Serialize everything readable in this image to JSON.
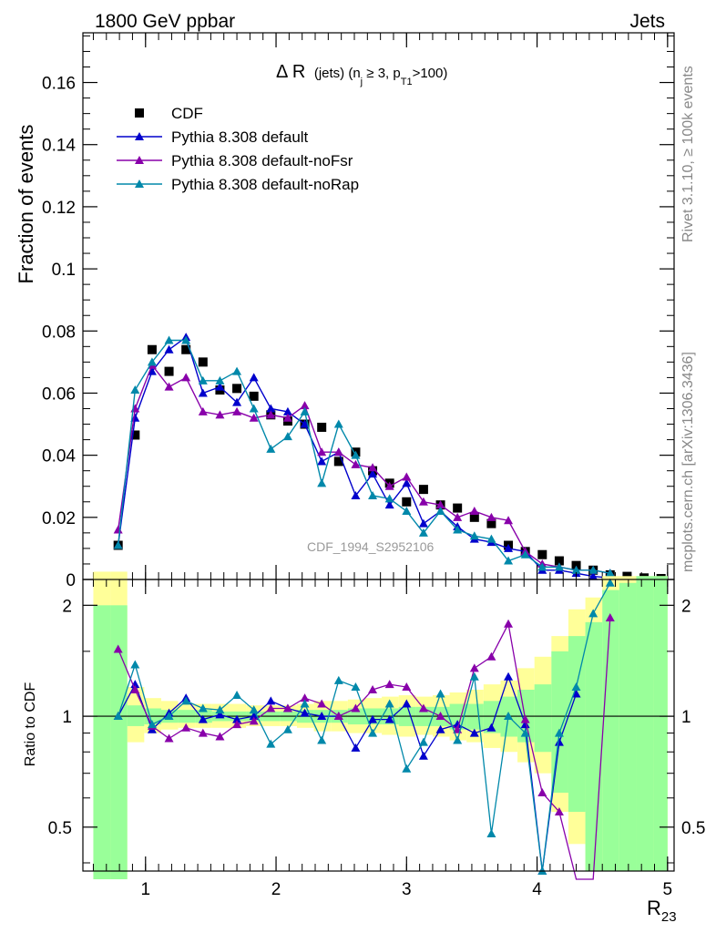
{
  "header": {
    "left": "1800 GeV ppbar",
    "right": "Jets"
  },
  "side": {
    "rivet": "Rivet 3.1.10, ≥ 100k events",
    "mcplots": "mcplots.cern.ch [arXiv:1306.3436]"
  },
  "watermark": "CDF_1994_S2952106",
  "chart_data": [
    {
      "id": "main",
      "type": "scatter",
      "title_main": "Δ R",
      "title_sub": "(jets) (n",
      "title_sub_j": "j",
      "title_sub_mid": " ≥ 3, p",
      "title_sub_t1": "T1",
      "title_sub_end": ">100)",
      "xlabel": "R",
      "xlabel_sub": "23",
      "ylabel": "Fraction of events",
      "xlim": [
        0.52,
        5.05
      ],
      "ylim": [
        0,
        0.176
      ],
      "yticks": [
        0,
        0.02,
        0.04,
        0.06,
        0.08,
        0.1,
        0.12,
        0.14,
        0.16
      ],
      "ytick_labels": [
        "0",
        "0.02",
        "0.04",
        "0.06",
        "0.08",
        "0.1",
        "0.12",
        "0.14",
        "0.16"
      ],
      "x": [
        0.7,
        0.8,
        0.9,
        1.0,
        1.1,
        1.2,
        1.3,
        1.4,
        1.5,
        1.6,
        1.7,
        1.8,
        1.9,
        2.0,
        2.1,
        2.2,
        2.3,
        2.4,
        2.5,
        2.6,
        2.7,
        2.8,
        2.9,
        3.0,
        3.1,
        3.2,
        3.3,
        3.4,
        3.5,
        3.6,
        3.7,
        3.8,
        3.9,
        4.0,
        4.1,
        4.2,
        4.3,
        4.4,
        4.5,
        4.6,
        4.7,
        4.8,
        4.9,
        5.0
      ],
      "series": [
        {
          "name": "CDF",
          "color": "#000000",
          "marker": "square",
          "x": [
            0.65,
            0.79,
            0.92,
            1.05,
            1.18,
            1.31,
            1.44,
            1.57,
            1.7,
            1.83,
            1.96,
            2.09,
            2.22,
            2.35,
            2.48,
            2.61,
            2.74,
            2.87,
            3.0,
            3.13,
            3.26,
            3.39,
            3.52,
            3.65,
            3.78,
            3.91,
            4.04,
            4.17,
            4.3,
            4.43,
            4.56,
            4.69,
            4.82,
            4.95
          ],
          "values": [
            0.0,
            0.011,
            0.0465,
            0.074,
            0.067,
            0.074,
            0.07,
            0.061,
            0.0615,
            0.059,
            0.053,
            0.051,
            0.05,
            0.049,
            0.038,
            0.041,
            0.035,
            0.031,
            0.025,
            0.029,
            0.024,
            0.023,
            0.02,
            0.018,
            0.011,
            0.009,
            0.008,
            0.006,
            0.0045,
            0.003,
            0.0015,
            0.001,
            0.0005,
            0.0003
          ]
        },
        {
          "name": "Pythia 8.308 default",
          "color": "#0000cc",
          "marker": "triangle",
          "x": [
            0.79,
            0.92,
            1.05,
            1.18,
            1.31,
            1.44,
            1.57,
            1.7,
            1.83,
            1.96,
            2.09,
            2.22,
            2.35,
            2.48,
            2.61,
            2.74,
            2.87,
            3.0,
            3.13,
            3.26,
            3.39,
            3.52,
            3.65,
            3.78,
            3.91,
            4.04,
            4.17,
            4.3,
            4.43,
            4.56
          ],
          "values": [
            0.011,
            0.052,
            0.067,
            0.074,
            0.078,
            0.06,
            0.062,
            0.057,
            0.065,
            0.055,
            0.054,
            0.05,
            0.038,
            0.041,
            0.027,
            0.034,
            0.024,
            0.031,
            0.018,
            0.022,
            0.017,
            0.013,
            0.012,
            0.01,
            0.009,
            0.003,
            0.003,
            0.002,
            0.001,
            0.0005
          ]
        },
        {
          "name": "Pythia 8.308 default-noFsr",
          "color": "#8800aa",
          "marker": "triangle",
          "x": [
            0.79,
            0.92,
            1.05,
            1.18,
            1.31,
            1.44,
            1.57,
            1.7,
            1.83,
            1.96,
            2.09,
            2.22,
            2.35,
            2.48,
            2.61,
            2.74,
            2.87,
            3.0,
            3.13,
            3.26,
            3.39,
            3.52,
            3.65,
            3.78,
            3.91,
            4.04,
            4.17,
            4.3,
            4.43,
            4.56
          ],
          "values": [
            0.016,
            0.055,
            0.069,
            0.062,
            0.065,
            0.054,
            0.053,
            0.054,
            0.052,
            0.053,
            0.052,
            0.056,
            0.041,
            0.041,
            0.037,
            0.036,
            0.03,
            0.033,
            0.025,
            0.024,
            0.02,
            0.022,
            0.02,
            0.019,
            0.009,
            0.005,
            0.004,
            0.003,
            0.003,
            0.002
          ]
        },
        {
          "name": "Pythia 8.308 default-noRap",
          "color": "#0088aa",
          "marker": "triangle",
          "x": [
            0.79,
            0.92,
            1.05,
            1.18,
            1.31,
            1.44,
            1.57,
            1.7,
            1.83,
            1.96,
            2.09,
            2.22,
            2.35,
            2.48,
            2.61,
            2.74,
            2.87,
            3.0,
            3.13,
            3.26,
            3.39,
            3.52,
            3.65,
            3.78,
            3.91,
            4.04,
            4.17,
            4.3,
            4.43,
            4.56
          ],
          "values": [
            0.011,
            0.061,
            0.07,
            0.077,
            0.077,
            0.064,
            0.064,
            0.067,
            0.055,
            0.042,
            0.046,
            0.054,
            0.031,
            0.05,
            0.04,
            0.027,
            0.026,
            0.022,
            0.015,
            0.022,
            0.016,
            0.014,
            0.013,
            0.006,
            0.008,
            0.004,
            0.004,
            0.003,
            0.003,
            0.002
          ]
        }
      ]
    },
    {
      "id": "ratio",
      "type": "line",
      "ylabel": "Ratio to CDF",
      "xlim": [
        0.52,
        5.05
      ],
      "ylim": [
        0.38,
        2.35
      ],
      "ylog": true,
      "yticks": [
        0.5,
        1,
        2
      ],
      "ytick_labels": [
        "0.5",
        "1",
        "2"
      ],
      "xticks": [
        1,
        2,
        3,
        4,
        5
      ],
      "xtick_labels": [
        "1",
        "2",
        "3",
        "4",
        "5"
      ],
      "bands": {
        "edges": [
          0.6,
          0.73,
          0.86,
          0.99,
          1.12,
          1.25,
          1.38,
          1.51,
          1.64,
          1.77,
          1.9,
          2.03,
          2.16,
          2.29,
          2.42,
          2.55,
          2.68,
          2.81,
          2.94,
          3.07,
          3.2,
          3.33,
          3.46,
          3.59,
          3.72,
          3.85,
          3.98,
          4.11,
          4.24,
          4.37,
          4.5,
          4.63,
          4.76,
          4.89,
          5.0
        ],
        "yellow_lo": [
          0.3,
          0.3,
          0.85,
          0.9,
          0.92,
          0.93,
          0.93,
          0.93,
          0.93,
          0.94,
          0.94,
          0.94,
          0.93,
          0.91,
          0.91,
          0.9,
          0.9,
          0.89,
          0.88,
          0.89,
          0.88,
          0.86,
          0.85,
          0.82,
          0.8,
          0.75,
          0.7,
          0.55,
          0.45,
          0.38,
          0.38,
          0.38,
          0.38,
          0.38
        ],
        "yellow_hi": [
          3.0,
          3.0,
          1.2,
          1.12,
          1.1,
          1.08,
          1.08,
          1.08,
          1.08,
          1.07,
          1.07,
          1.07,
          1.08,
          1.1,
          1.1,
          1.11,
          1.12,
          1.13,
          1.14,
          1.13,
          1.14,
          1.16,
          1.18,
          1.22,
          1.25,
          1.35,
          1.45,
          1.65,
          1.95,
          2.1,
          2.4,
          2.4,
          2.4,
          2.4
        ],
        "green_lo": [
          0.3,
          0.3,
          0.94,
          0.95,
          0.96,
          0.96,
          0.96,
          0.97,
          0.97,
          0.97,
          0.97,
          0.97,
          0.96,
          0.96,
          0.96,
          0.95,
          0.95,
          0.95,
          0.94,
          0.94,
          0.94,
          0.92,
          0.92,
          0.9,
          0.88,
          0.85,
          0.8,
          0.62,
          0.55,
          0.38,
          0.38,
          0.38,
          0.38,
          0.38
        ],
        "green_hi": [
          2.0,
          2.0,
          1.07,
          1.05,
          1.04,
          1.04,
          1.04,
          1.03,
          1.03,
          1.03,
          1.03,
          1.03,
          1.04,
          1.04,
          1.04,
          1.05,
          1.05,
          1.05,
          1.06,
          1.06,
          1.06,
          1.08,
          1.08,
          1.1,
          1.13,
          1.18,
          1.22,
          1.5,
          1.65,
          1.8,
          2.2,
          2.3,
          2.4,
          2.4
        ]
      },
      "series": [
        {
          "name": "Pythia 8.308 default",
          "color": "#0000cc",
          "x": [
            0.79,
            0.92,
            1.05,
            1.18,
            1.31,
            1.44,
            1.57,
            1.7,
            1.83,
            1.96,
            2.09,
            2.22,
            2.35,
            2.48,
            2.61,
            2.74,
            2.87,
            3.0,
            3.13,
            3.26,
            3.39,
            3.52,
            3.65,
            3.78,
            3.91,
            4.04,
            4.17,
            4.3
          ],
          "values": [
            1.0,
            1.22,
            0.92,
            1.02,
            1.12,
            0.98,
            1.01,
            0.98,
            1.0,
            1.1,
            1.05,
            1.02,
            1.0,
            1.0,
            0.82,
            0.98,
            0.98,
            1.08,
            0.78,
            0.92,
            0.95,
            0.9,
            0.93,
            1.28,
            0.95,
            0.38,
            0.85,
            1.15
          ]
        },
        {
          "name": "Pythia 8.308 default-noFsr",
          "color": "#8800aa",
          "x": [
            0.79,
            0.92,
            1.05,
            1.18,
            1.31,
            1.44,
            1.57,
            1.7,
            1.83,
            1.96,
            2.09,
            2.22,
            2.35,
            2.48,
            2.61,
            2.74,
            2.87,
            3.0,
            3.13,
            3.26,
            3.39,
            3.52,
            3.65,
            3.78,
            3.91,
            4.04,
            4.17,
            4.3,
            4.43,
            4.56
          ],
          "values": [
            1.52,
            1.18,
            0.94,
            0.87,
            0.93,
            0.9,
            0.88,
            0.95,
            0.97,
            1.05,
            1.05,
            1.12,
            1.08,
            1.0,
            1.05,
            1.18,
            1.22,
            1.2,
            1.05,
            1.0,
            0.92,
            1.35,
            1.45,
            1.78,
            0.98,
            0.62,
            0.55,
            0.3,
            0.3,
            1.85
          ]
        },
        {
          "name": "Pythia 8.308 default-noRap",
          "color": "#0088aa",
          "x": [
            0.79,
            0.92,
            1.05,
            1.18,
            1.31,
            1.44,
            1.57,
            1.7,
            1.83,
            1.96,
            2.09,
            2.22,
            2.35,
            2.48,
            2.61,
            2.74,
            2.87,
            3.0,
            3.13,
            3.26,
            3.39,
            3.52,
            3.65,
            3.78,
            3.91,
            4.04,
            4.17,
            4.3,
            4.43,
            4.56
          ],
          "values": [
            1.0,
            1.38,
            0.95,
            1.0,
            1.1,
            1.05,
            1.04,
            1.14,
            1.04,
            0.84,
            0.92,
            1.08,
            0.86,
            1.25,
            1.2,
            0.9,
            1.08,
            0.72,
            0.85,
            1.15,
            0.86,
            1.28,
            0.48,
            1.0,
            0.9,
            0.38,
            0.9,
            1.2,
            1.9,
            2.3
          ]
        }
      ]
    }
  ]
}
